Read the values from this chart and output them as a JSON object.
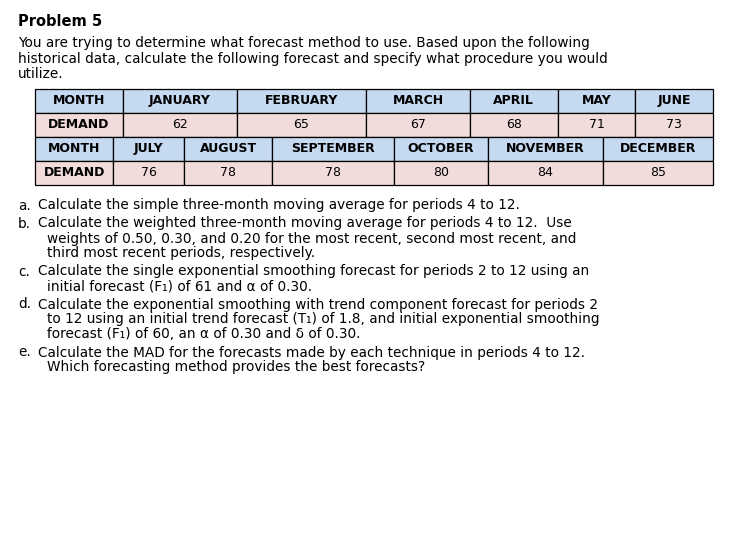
{
  "title": "Problem 5",
  "intro_line1": "You are trying to determine what forecast method to use. Based upon the following",
  "intro_line2": "historical data, calculate the following forecast and specify what procedure you would",
  "intro_line3": "utilize.",
  "table1_headers": [
    "MONTH",
    "JANUARY",
    "FEBRUARY",
    "MARCH",
    "APRIL",
    "MAY",
    "JUNE"
  ],
  "table1_demand": [
    "DEMAND",
    "62",
    "65",
    "67",
    "68",
    "71",
    "73"
  ],
  "table2_headers": [
    "MONTH",
    "JULY",
    "AUGUST",
    "SEPTEMBER",
    "OCTOBER",
    "NOVEMBER",
    "DECEMBER"
  ],
  "table2_demand": [
    "DEMAND",
    "76",
    "78",
    "78",
    "80",
    "84",
    "85"
  ],
  "header_bg": "#c5d9f1",
  "demand_bg": "#f2dcdb",
  "border_color": "#000000",
  "text_color": "#000000",
  "background_color": "#ffffff",
  "body_font_size": 9.8,
  "title_font_size": 10.5,
  "table_font_size": 9.0,
  "bullet_labels": [
    "a.",
    "b.",
    "c.",
    "d.",
    "e."
  ],
  "bullet_texts": [
    "Calculate the simple three-month moving average for periods 4 to 12.",
    "Calculate the weighted three-month moving average for periods 4 to 12.  Use weights of 0.50, 0.30, and 0.20 for the most recent, second most recent, and third most recent periods, respectively.",
    "Calculate the single exponential smoothing forecast for periods 2 to 12 using an initial forecast (F₁) of 61 and α of 0.30.",
    "Calculate the exponential smoothing with trend component forecast for periods 2 to 12 using an initial trend forecast (T₁) of 1.8, and initial exponential smoothing forecast (F₁) of 60, an α of 0.30 and δ of 0.30.",
    "Calculate the MAD for the forecasts made by each technique in periods 4 to 12. Which forecasting method provides the best forecasts?"
  ]
}
